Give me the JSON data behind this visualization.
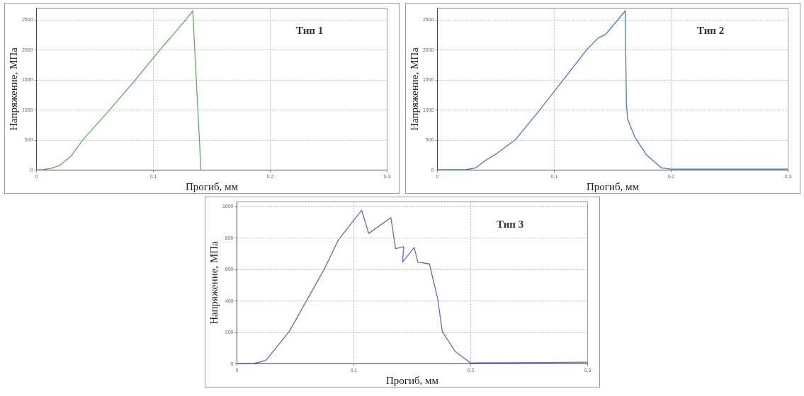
{
  "chart_data": [
    {
      "type": "line",
      "xlabel": "Прогиб, мм",
      "ylabel": "Напряжение, МПа",
      "annotations": [
        "Тип 1"
      ],
      "grid": true,
      "xlim": [
        0,
        0.3
      ],
      "xticks": [
        0,
        0.1,
        0.2,
        0.3
      ],
      "ylim": [
        0,
        2700
      ],
      "yticks": [
        0,
        500,
        1000,
        1500,
        2000,
        2500
      ],
      "series": [
        {
          "color": "#5cae5c",
          "x": [
            0,
            0.005,
            0.012,
            0.02,
            0.03,
            0.04,
            0.063,
            0.085,
            0.106,
            0.128,
            0.134,
            0.141
          ],
          "values": [
            0,
            0,
            20,
            70,
            230,
            500,
            1000,
            1500,
            2000,
            2500,
            2650,
            0
          ]
        }
      ]
    },
    {
      "type": "line",
      "xlabel": "Прогиб, мм",
      "ylabel": "Напряжение, МПа",
      "annotations": [
        "Тип 2"
      ],
      "grid": true,
      "xlim": [
        0,
        0.3
      ],
      "xticks": [
        0,
        0.1,
        0.2,
        0.3
      ],
      "ylim": [
        0,
        2700
      ],
      "yticks": [
        0,
        500,
        1000,
        1500,
        2000,
        2500
      ],
      "series": [
        {
          "color": "#4a72d4",
          "x": [
            0,
            0.025,
            0.033,
            0.041,
            0.051,
            0.067,
            0.088,
            0.108,
            0.128,
            0.138,
            0.144,
            0.161,
            0.162,
            0.163,
            0.169,
            0.179,
            0.192,
            0.2,
            0.3
          ],
          "values": [
            0,
            0,
            30,
            150,
            270,
            500,
            1000,
            1500,
            2000,
            2200,
            2250,
            2650,
            1100,
            850,
            550,
            250,
            30,
            10,
            10
          ]
        }
      ]
    },
    {
      "type": "line",
      "xlabel": "Прогиб, мм",
      "ylabel": "Напряжение, МПа",
      "annotations": [
        "Тип 3"
      ],
      "grid": true,
      "xlim": [
        0,
        0.3
      ],
      "xticks": [
        0,
        0.1,
        0.2,
        0.3
      ],
      "ylim": [
        0,
        1030
      ],
      "yticks": [
        0,
        200,
        400,
        600,
        800,
        1000
      ],
      "series": [
        {
          "color": "#6464d8",
          "x": [
            0,
            0.015,
            0.025,
            0.045,
            0.075,
            0.087,
            0.107,
            0.113,
            0.132,
            0.136,
            0.143,
            0.142,
            0.152,
            0.155,
            0.165,
            0.172,
            0.176,
            0.187,
            0.2,
            0.3
          ],
          "values": [
            0,
            0,
            20,
            203,
            600,
            785,
            975,
            827,
            928,
            730,
            743,
            645,
            738,
            645,
            633,
            413,
            203,
            76,
            4,
            8
          ]
        }
      ]
    }
  ]
}
